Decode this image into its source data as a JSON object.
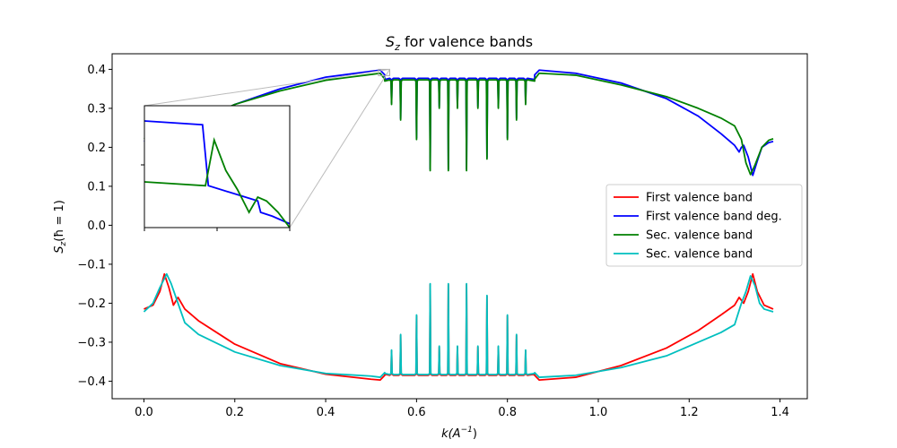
{
  "chart_data": {
    "type": "line",
    "title": "S_z for valence bands",
    "title_parts": {
      "main": "S",
      "sub": "z",
      "rest": " for valence bands"
    },
    "xlabel": "k(A^-1)",
    "xlabel_parts": {
      "main": "k(A",
      "sup": "−1",
      "rest": ")"
    },
    "ylabel": "S_z(ħ = 1)",
    "ylabel_parts": {
      "main": "S",
      "sub": "z",
      "rest": "(ħ = 1)"
    },
    "xlim": [
      -0.07,
      1.46
    ],
    "ylim": [
      -0.445,
      0.44
    ],
    "xticks": [
      0.0,
      0.2,
      0.4,
      0.6,
      0.8,
      1.0,
      1.2,
      1.4
    ],
    "xtick_labels": [
      "0.0",
      "0.2",
      "0.4",
      "0.6",
      "0.8",
      "1.0",
      "1.2",
      "1.4"
    ],
    "yticks": [
      -0.4,
      -0.3,
      -0.2,
      -0.1,
      0.0,
      0.1,
      0.2,
      0.3,
      0.4
    ],
    "ytick_labels": [
      "−0.4",
      "−0.3",
      "−0.2",
      "−0.1",
      "0.0",
      "0.1",
      "0.2",
      "0.3",
      "0.4"
    ],
    "legend_position": "center-right",
    "grid": false,
    "series": [
      {
        "name": "First valence band",
        "color": "#ff0000",
        "x": [
          0.0,
          0.02,
          0.035,
          0.045,
          0.055,
          0.065,
          0.075,
          0.09,
          0.12,
          0.2,
          0.3,
          0.4,
          0.5,
          0.52,
          0.53,
          0.86,
          0.87,
          0.95,
          1.05,
          1.15,
          1.22,
          1.27,
          1.3,
          1.31,
          1.32,
          1.33,
          1.34,
          1.35,
          1.365,
          1.385
        ],
        "y": [
          -0.215,
          -0.205,
          -0.17,
          -0.125,
          -0.16,
          -0.205,
          -0.185,
          -0.215,
          -0.245,
          -0.305,
          -0.355,
          -0.382,
          -0.395,
          -0.397,
          -0.385,
          -0.385,
          -0.397,
          -0.39,
          -0.36,
          -0.315,
          -0.27,
          -0.23,
          -0.205,
          -0.185,
          -0.2,
          -0.17,
          -0.125,
          -0.17,
          -0.205,
          -0.215
        ]
      },
      {
        "name": "First valence band deg.",
        "color": "#0000ff",
        "x": [
          0.0,
          0.1,
          0.2,
          0.3,
          0.4,
          0.5,
          0.52,
          0.53,
          0.86,
          0.87,
          0.95,
          1.05,
          1.15,
          1.22,
          1.27,
          1.3,
          1.31,
          1.315,
          1.32,
          1.33,
          1.34,
          1.35,
          1.36,
          1.375,
          1.385
        ],
        "y": [
          0.215,
          0.255,
          0.31,
          0.35,
          0.38,
          0.395,
          0.398,
          0.386,
          0.386,
          0.398,
          0.39,
          0.365,
          0.325,
          0.28,
          0.235,
          0.205,
          0.188,
          0.2,
          0.205,
          0.175,
          0.128,
          0.165,
          0.2,
          0.212,
          0.215
        ]
      },
      {
        "name": "Sec. valence band",
        "color": "#008000",
        "x": [
          0.0,
          0.1,
          0.2,
          0.3,
          0.4,
          0.5,
          0.52,
          0.53,
          0.86,
          0.87,
          0.95,
          1.05,
          1.15,
          1.22,
          1.27,
          1.3,
          1.315,
          1.325,
          1.335,
          1.345,
          1.36,
          1.375,
          1.385
        ],
        "y": [
          0.222,
          0.26,
          0.31,
          0.345,
          0.372,
          0.387,
          0.39,
          0.375,
          0.375,
          0.39,
          0.385,
          0.36,
          0.33,
          0.3,
          0.275,
          0.255,
          0.22,
          0.16,
          0.13,
          0.155,
          0.2,
          0.218,
          0.222
        ]
      },
      {
        "name": "Sec. valence band",
        "color": "#00bfbf",
        "x": [
          0.0,
          0.02,
          0.035,
          0.05,
          0.06,
          0.075,
          0.09,
          0.12,
          0.2,
          0.3,
          0.4,
          0.5,
          0.52,
          0.53,
          0.86,
          0.87,
          0.95,
          1.05,
          1.15,
          1.22,
          1.27,
          1.3,
          1.315,
          1.325,
          1.335,
          1.345,
          1.355,
          1.365,
          1.385
        ],
        "y": [
          -0.222,
          -0.2,
          -0.16,
          -0.125,
          -0.15,
          -0.2,
          -0.25,
          -0.28,
          -0.325,
          -0.36,
          -0.38,
          -0.387,
          -0.39,
          -0.378,
          -0.378,
          -0.39,
          -0.385,
          -0.365,
          -0.335,
          -0.3,
          -0.275,
          -0.255,
          -0.2,
          -0.17,
          -0.13,
          -0.155,
          -0.2,
          -0.215,
          -0.222
        ]
      }
    ],
    "band_region": {
      "x_start": 0.53,
      "x_end": 0.86,
      "upper_level": 0.37,
      "lower_level": -0.382,
      "spikes_x": [
        0.545,
        0.565,
        0.6,
        0.63,
        0.65,
        0.67,
        0.69,
        0.71,
        0.735,
        0.755,
        0.78,
        0.8,
        0.82,
        0.84
      ],
      "spikes_depth": [
        0.06,
        0.1,
        0.15,
        0.23,
        0.07,
        0.23,
        0.07,
        0.23,
        0.07,
        0.2,
        0.07,
        0.15,
        0.1,
        0.06
      ]
    },
    "inset": {
      "x_range": [
        0.516,
        0.541
      ],
      "y_range": [
        0.384,
        0.4
      ],
      "blue": {
        "x": [
          0.516,
          0.526,
          0.527,
          0.5355,
          0.536,
          0.538,
          0.541
        ],
        "y": [
          0.398,
          0.3975,
          0.3895,
          0.3875,
          0.386,
          0.3855,
          0.3845
        ]
      },
      "green": {
        "x": [
          0.516,
          0.5265,
          0.528,
          0.53,
          0.532,
          0.534,
          0.5355,
          0.537,
          0.539,
          0.541
        ],
        "y": [
          0.39,
          0.3895,
          0.3955,
          0.3915,
          0.389,
          0.386,
          0.388,
          0.3875,
          0.386,
          0.384
        ]
      }
    }
  }
}
